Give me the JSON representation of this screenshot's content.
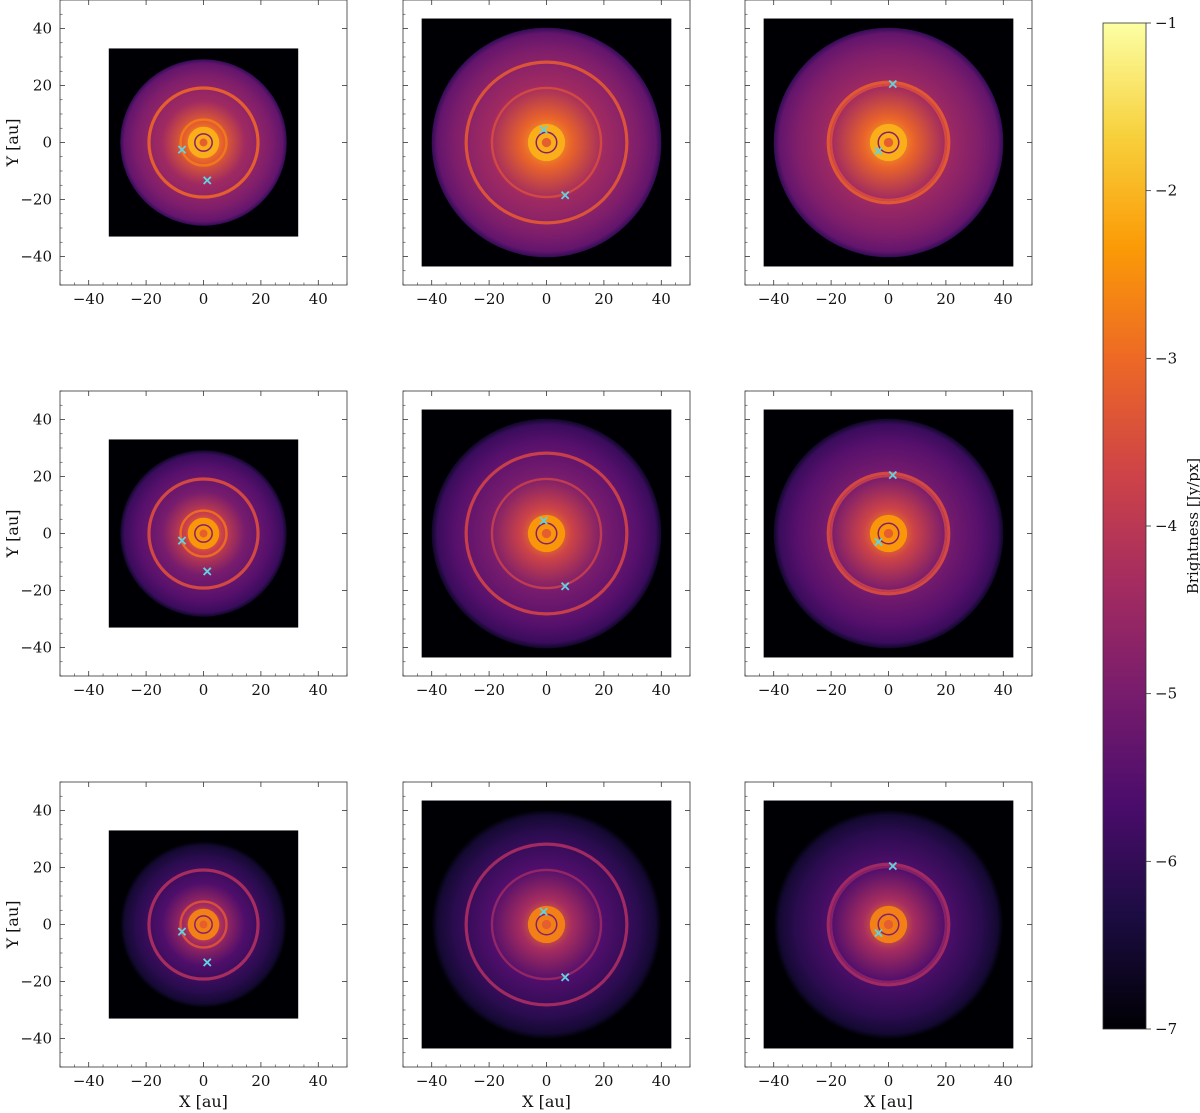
{
  "colorbar": {
    "label": "Brightness [Jy/px]",
    "min": -7,
    "max": -1,
    "ticks": [
      -1,
      -2,
      -3,
      -4,
      -5,
      -6,
      -7
    ],
    "tick_labels": [
      "−1",
      "−2",
      "−3",
      "−4",
      "−5",
      "−6",
      "−7"
    ],
    "colormap": "inferno"
  },
  "axes_common": {
    "xlabel": "X [au]",
    "ylabel": "Y [au]",
    "xlim": [
      -50,
      50
    ],
    "ylim": [
      -50,
      50
    ],
    "ticks": [
      -40,
      -20,
      0,
      20,
      40
    ],
    "tick_labels": [
      "−40",
      "−20",
      "0",
      "20",
      "40"
    ]
  },
  "chart_data": [
    {
      "type": "heatmap",
      "row": 0,
      "col": 0,
      "image_extent": [
        -33,
        33,
        -33,
        33
      ],
      "disk_outer_radius": 29,
      "rings": [
        {
          "radius": 19,
          "level": -3.2
        },
        {
          "radius": 8,
          "level": -2.8
        }
      ],
      "planets": [
        {
          "x": -7.5,
          "y": -2.5
        },
        {
          "x": 1.3,
          "y": -13.3
        }
      ]
    },
    {
      "type": "heatmap",
      "row": 0,
      "col": 1,
      "image_extent": [
        -43.5,
        43.5,
        -43.5,
        43.5
      ],
      "disk_outer_radius": 40,
      "rings": [
        {
          "radius": 28,
          "level": -3.4
        },
        {
          "radius": 19,
          "level": -3.6
        }
      ],
      "planets": [
        {
          "x": -1,
          "y": 4.5
        },
        {
          "x": 6.5,
          "y": -18.5
        }
      ]
    },
    {
      "type": "heatmap",
      "row": 0,
      "col": 2,
      "image_extent": [
        -43.5,
        43.5,
        -43.5,
        43.5
      ],
      "disk_outer_radius": 40,
      "rings": [
        {
          "radius": 21,
          "level": -3.3
        },
        {
          "radius": 20,
          "level": -3.6
        }
      ],
      "planets": [
        {
          "x": -3.5,
          "y": -3
        },
        {
          "x": 1.5,
          "y": 20.5
        }
      ]
    },
    {
      "type": "heatmap",
      "row": 1,
      "col": 0,
      "image_extent": [
        -33,
        33,
        -33,
        33
      ],
      "disk_outer_radius": 29,
      "rings": [
        {
          "radius": 19,
          "level": -3.6
        },
        {
          "radius": 8,
          "level": -3.0
        }
      ],
      "planets": [
        {
          "x": -7.5,
          "y": -2.5
        },
        {
          "x": 1.3,
          "y": -13.3
        }
      ]
    },
    {
      "type": "heatmap",
      "row": 1,
      "col": 1,
      "image_extent": [
        -43.5,
        43.5,
        -43.5,
        43.5
      ],
      "disk_outer_radius": 40,
      "rings": [
        {
          "radius": 28,
          "level": -3.8
        },
        {
          "radius": 19,
          "level": -3.9
        }
      ],
      "planets": [
        {
          "x": -1,
          "y": 4.5
        },
        {
          "x": 6.5,
          "y": -18.5
        }
      ]
    },
    {
      "type": "heatmap",
      "row": 1,
      "col": 2,
      "image_extent": [
        -43.5,
        43.5,
        -43.5,
        43.5
      ],
      "disk_outer_radius": 40,
      "rings": [
        {
          "radius": 21,
          "level": -3.6
        },
        {
          "radius": 20,
          "level": -3.9
        }
      ],
      "planets": [
        {
          "x": -3.5,
          "y": -3
        },
        {
          "x": 1.5,
          "y": 20.5
        }
      ]
    },
    {
      "type": "heatmap",
      "row": 2,
      "col": 0,
      "image_extent": [
        -33,
        33,
        -33,
        33
      ],
      "disk_outer_radius": 29,
      "rings": [
        {
          "radius": 19,
          "level": -4.3
        },
        {
          "radius": 8,
          "level": -3.5
        }
      ],
      "planets": [
        {
          "x": -7.5,
          "y": -2.5
        },
        {
          "x": 1.3,
          "y": -13.3
        }
      ]
    },
    {
      "type": "heatmap",
      "row": 2,
      "col": 1,
      "image_extent": [
        -43.5,
        43.5,
        -43.5,
        43.5
      ],
      "disk_outer_radius": 40,
      "rings": [
        {
          "radius": 28,
          "level": -4.4
        },
        {
          "radius": 19,
          "level": -4.6
        }
      ],
      "planets": [
        {
          "x": -1,
          "y": 4.5
        },
        {
          "x": 6.5,
          "y": -18.5
        }
      ]
    },
    {
      "type": "heatmap",
      "row": 2,
      "col": 2,
      "image_extent": [
        -43.5,
        43.5,
        -43.5,
        43.5
      ],
      "disk_outer_radius": 40,
      "rings": [
        {
          "radius": 21,
          "level": -4.4
        },
        {
          "radius": 20,
          "level": -4.8
        }
      ],
      "planets": [
        {
          "x": -3.5,
          "y": -3
        },
        {
          "x": 1.5,
          "y": 20.5
        }
      ]
    }
  ],
  "colors": {
    "planet_marker": "#5fd3e6",
    "background": "#000004",
    "inferno_stops": [
      "#000004",
      "#1b0c41",
      "#4a0c6b",
      "#781c6d",
      "#a52c60",
      "#cf4446",
      "#ed6925",
      "#fb9b06",
      "#f7d13d",
      "#fcffa4"
    ]
  }
}
